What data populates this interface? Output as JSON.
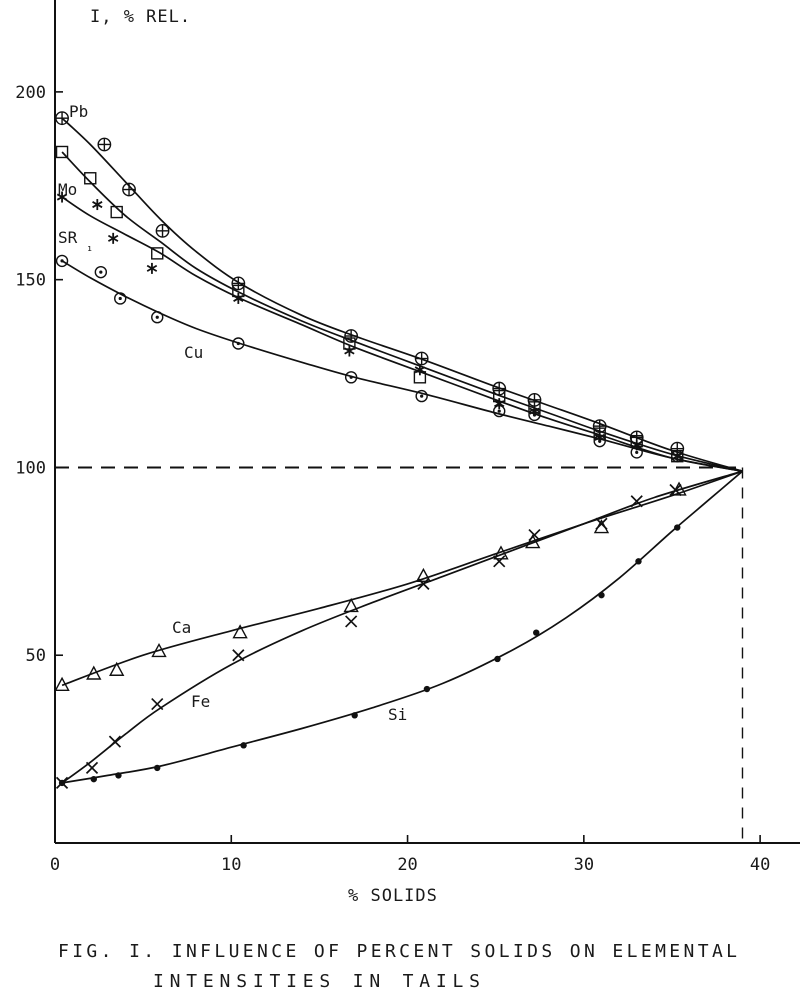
{
  "chart_data": {
    "type": "scatter",
    "title": "FIG. I. INFLUENCE OF PERCENT SOLIDS ON ELEMENTAL",
    "title_line2": "INTENSITIES IN TAILS",
    "ylabel": "I, % REL.",
    "xlabel": "% SOLIDS",
    "xlim": [
      0,
      43
    ],
    "ylim": [
      0,
      225
    ],
    "x_ticks": [
      0,
      10,
      20,
      30,
      40
    ],
    "y_ticks": [
      50,
      100,
      150,
      200
    ],
    "grid": false,
    "reference_lines": {
      "horizontal_y": 100,
      "vertical_x": 39
    },
    "series": [
      {
        "name": "Pb",
        "marker": "circle-plus",
        "points": [
          [
            0.4,
            193
          ],
          [
            2.8,
            186
          ],
          [
            4.2,
            174
          ],
          [
            6.1,
            163
          ],
          [
            10.4,
            149
          ],
          [
            16.8,
            135
          ],
          [
            20.8,
            129
          ],
          [
            25.2,
            121
          ],
          [
            27.2,
            118
          ],
          [
            30.9,
            111
          ],
          [
            33,
            108
          ],
          [
            35.3,
            105
          ]
        ],
        "curve": [
          [
            0.4,
            193
          ],
          [
            2,
            186
          ],
          [
            4,
            176
          ],
          [
            6,
            166
          ],
          [
            8,
            157.5
          ],
          [
            10.5,
            149
          ],
          [
            14,
            140.5
          ],
          [
            17,
            135
          ],
          [
            21,
            128.5
          ],
          [
            25,
            121.5
          ],
          [
            28,
            116.5
          ],
          [
            31,
            111.5
          ],
          [
            35,
            104.5
          ],
          [
            39,
            99
          ]
        ]
      },
      {
        "name": "Mo",
        "marker": "square",
        "points": [
          [
            0.4,
            184
          ],
          [
            2,
            177
          ],
          [
            3.5,
            168
          ],
          [
            5.8,
            157
          ],
          [
            10.4,
            147
          ],
          [
            16.7,
            133
          ],
          [
            20.7,
            124
          ],
          [
            25.2,
            119
          ],
          [
            27.2,
            116
          ],
          [
            30.9,
            109
          ],
          [
            33,
            107
          ],
          [
            35.3,
            103
          ]
        ],
        "curve": [
          [
            0.4,
            184
          ],
          [
            2,
            176
          ],
          [
            4,
            167
          ],
          [
            6,
            160
          ],
          [
            8,
            153
          ],
          [
            10.5,
            146.5
          ],
          [
            14,
            139
          ],
          [
            17,
            133.5
          ],
          [
            21,
            126.5
          ],
          [
            25,
            119.5
          ],
          [
            28,
            114.5
          ],
          [
            31,
            109.5
          ],
          [
            35,
            103.5
          ],
          [
            39,
            99
          ]
        ]
      },
      {
        "name": "SR₁",
        "marker": "asterisk",
        "points": [
          [
            0.4,
            172
          ],
          [
            2.4,
            170
          ],
          [
            3.3,
            161
          ],
          [
            5.5,
            153
          ],
          [
            10.4,
            145
          ],
          [
            16.7,
            131
          ],
          [
            20.7,
            126
          ],
          [
            25.2,
            117
          ],
          [
            27.2,
            115
          ],
          [
            30.9,
            108
          ],
          [
            33,
            106
          ],
          [
            35.3,
            103
          ]
        ],
        "curve": [
          [
            0.4,
            172
          ],
          [
            2,
            167
          ],
          [
            4,
            162
          ],
          [
            6,
            157
          ],
          [
            8,
            151
          ],
          [
            10.5,
            145
          ],
          [
            14,
            138
          ],
          [
            17,
            132
          ],
          [
            21,
            125
          ],
          [
            25,
            118
          ],
          [
            28,
            113
          ],
          [
            31,
            108.5
          ],
          [
            35,
            102.5
          ],
          [
            39,
            99
          ]
        ]
      },
      {
        "name": "Cu",
        "marker": "circle-dot",
        "points": [
          [
            0.4,
            155
          ],
          [
            2.6,
            152
          ],
          [
            3.7,
            145
          ],
          [
            5.8,
            140
          ],
          [
            10.4,
            133
          ],
          [
            16.8,
            124
          ],
          [
            20.8,
            119
          ],
          [
            25.2,
            115
          ],
          [
            27.2,
            114
          ],
          [
            30.9,
            107
          ],
          [
            33,
            104
          ],
          [
            35.3,
            103
          ]
        ],
        "curve": [
          [
            0.4,
            155
          ],
          [
            2,
            150.5
          ],
          [
            4,
            145.5
          ],
          [
            6,
            141
          ],
          [
            8,
            137
          ],
          [
            10.5,
            133
          ],
          [
            14,
            128
          ],
          [
            17,
            124
          ],
          [
            21,
            119.5
          ],
          [
            25,
            114.5
          ],
          [
            28,
            111
          ],
          [
            31,
            107.5
          ],
          [
            35,
            102.5
          ],
          [
            39,
            99
          ]
        ]
      },
      {
        "name": "Ca",
        "marker": "triangle",
        "points": [
          [
            0.4,
            42
          ],
          [
            2.2,
            45
          ],
          [
            3.5,
            46
          ],
          [
            5.9,
            51
          ],
          [
            10.5,
            56
          ],
          [
            16.8,
            63
          ],
          [
            20.9,
            71
          ],
          [
            25.3,
            77
          ],
          [
            27.1,
            80
          ],
          [
            31,
            84
          ],
          [
            35.4,
            94
          ]
        ],
        "curve": [
          [
            0.4,
            42
          ],
          [
            5,
            50
          ],
          [
            10,
            56.5
          ],
          [
            15,
            62.5
          ],
          [
            20,
            69
          ],
          [
            25,
            77
          ],
          [
            30,
            85
          ],
          [
            35,
            92.5
          ],
          [
            39,
            99
          ]
        ]
      },
      {
        "name": "Fe",
        "marker": "cross",
        "points": [
          [
            0.4,
            16
          ],
          [
            2.1,
            20
          ],
          [
            3.4,
            27
          ],
          [
            5.8,
            37
          ],
          [
            10.4,
            50
          ],
          [
            16.8,
            59
          ],
          [
            20.9,
            69
          ],
          [
            25.2,
            75
          ],
          [
            27.2,
            82
          ],
          [
            31,
            85
          ],
          [
            33,
            91
          ],
          [
            35.2,
            94
          ]
        ],
        "curve": [
          [
            0.4,
            16
          ],
          [
            2,
            21.5
          ],
          [
            4,
            29
          ],
          [
            6,
            36
          ],
          [
            10,
            47.5
          ],
          [
            14,
            56.5
          ],
          [
            18,
            64
          ],
          [
            22,
            71
          ],
          [
            26,
            78
          ],
          [
            30,
            85
          ],
          [
            34,
            92
          ],
          [
            39,
            99
          ]
        ]
      },
      {
        "name": "Si",
        "marker": "dot",
        "points": [
          [
            0.4,
            16
          ],
          [
            2.2,
            17
          ],
          [
            3.6,
            18
          ],
          [
            5.8,
            20
          ],
          [
            10.7,
            26
          ],
          [
            17,
            34
          ],
          [
            21.1,
            41
          ],
          [
            25.1,
            49
          ],
          [
            27.3,
            56
          ],
          [
            31,
            66
          ],
          [
            33.1,
            75
          ],
          [
            35.3,
            84
          ]
        ],
        "curve": [
          [
            0.4,
            16
          ],
          [
            3,
            18
          ],
          [
            6,
            20.5
          ],
          [
            10,
            25.5
          ],
          [
            14,
            30.5
          ],
          [
            18,
            36
          ],
          [
            22,
            42.5
          ],
          [
            26,
            51.5
          ],
          [
            29,
            60
          ],
          [
            32,
            70.5
          ],
          [
            35,
            83
          ],
          [
            37,
            91
          ],
          [
            39,
            99
          ]
        ]
      }
    ],
    "series_label_text": [
      "Pb",
      "Mo",
      "SR",
      "₁",
      "Cu",
      "Ca",
      "Fe",
      "Si"
    ]
  }
}
